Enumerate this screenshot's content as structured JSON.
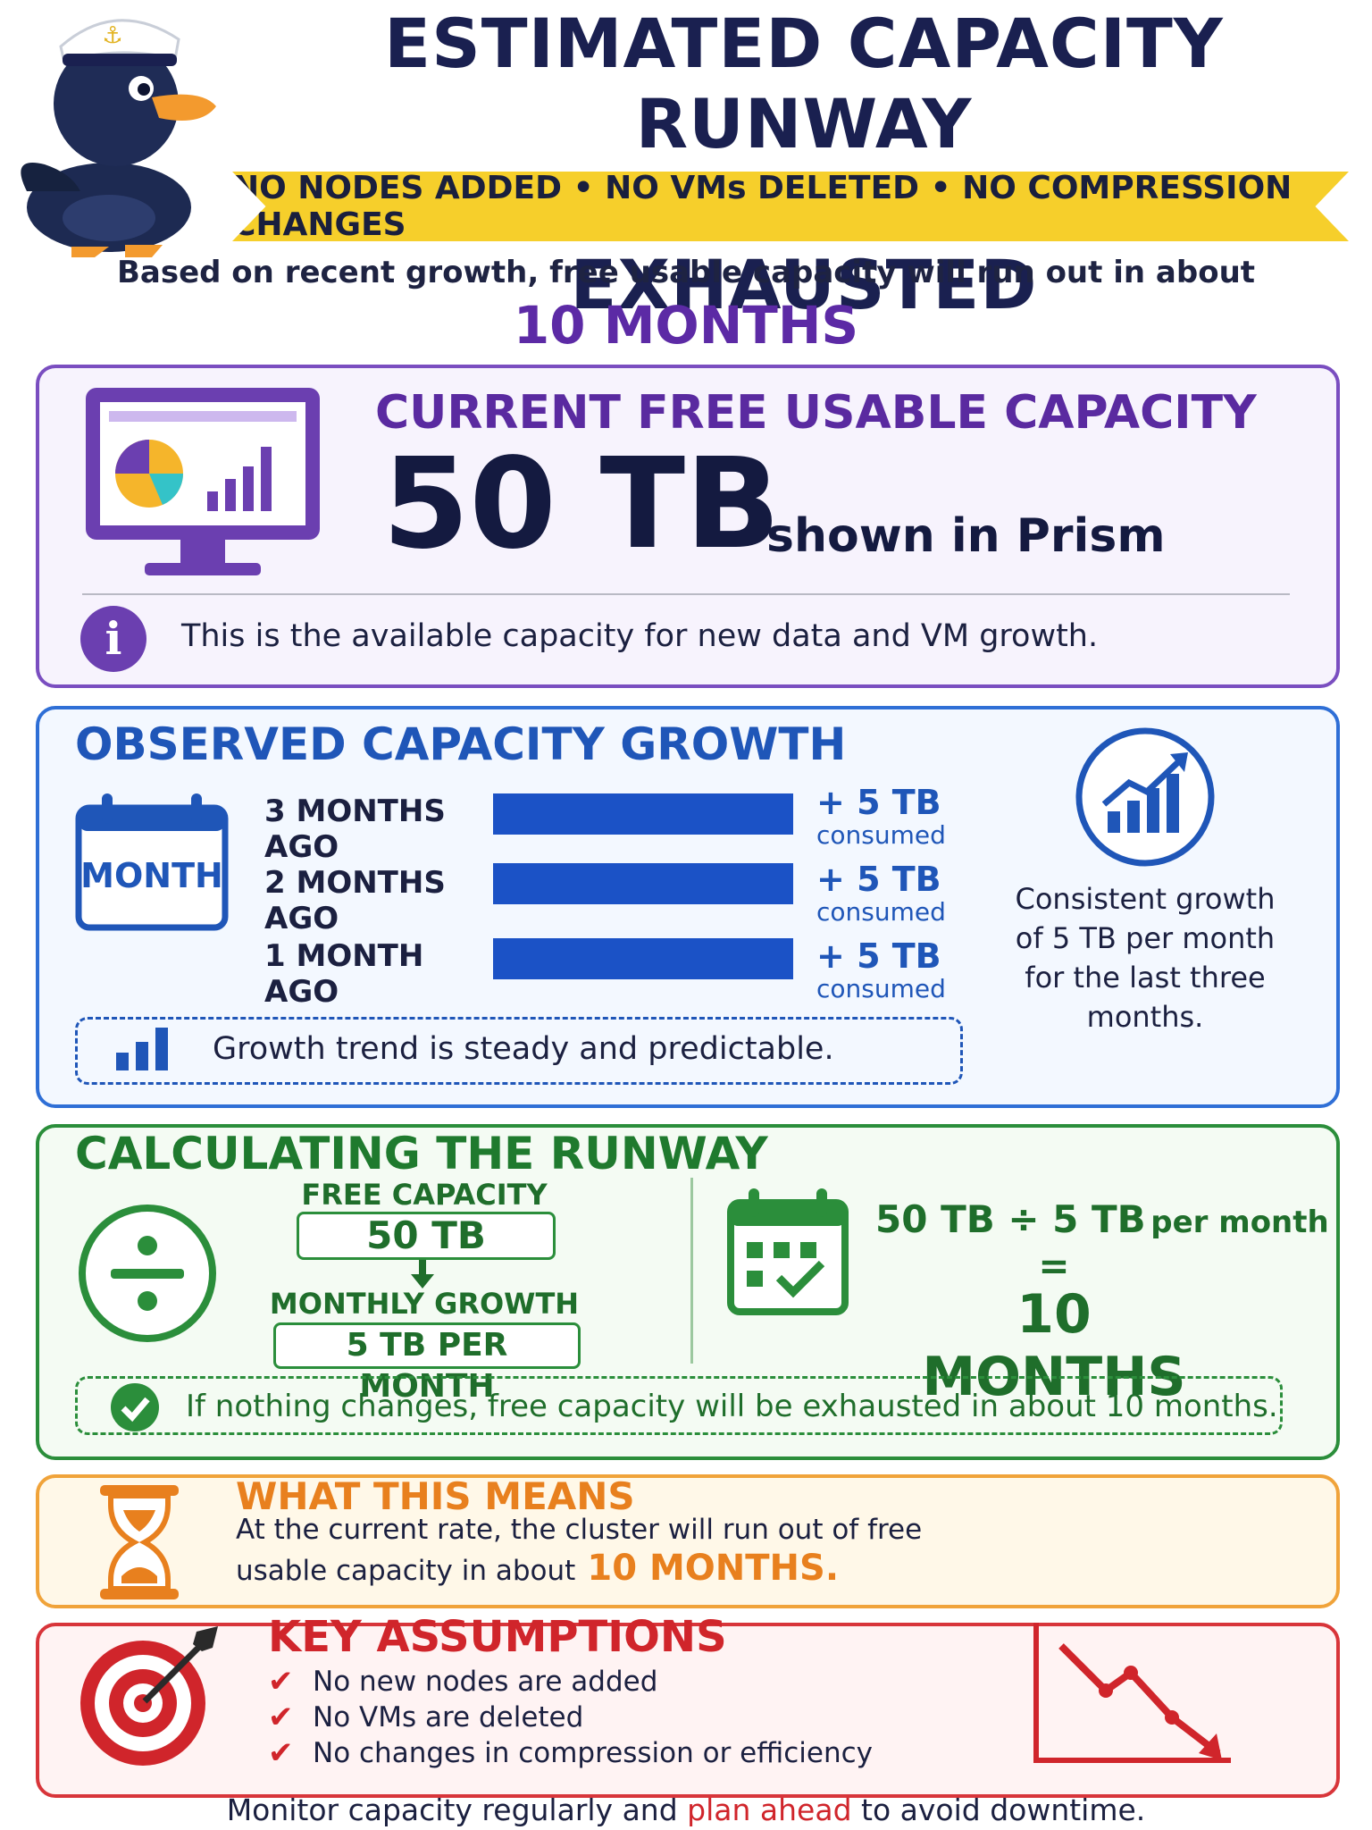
{
  "header": {
    "title_line1": "ESTIMATED CAPACITY RUNWAY",
    "title_line2": "BEFORE FREE SPACE IS EXHAUSTED",
    "banner": "NO NODES ADDED • NO VMs DELETED • NO COMPRESSION CHANGES",
    "intro": "Based on recent growth, free usable capacity will run out in about",
    "intro_value": "10 MONTHS"
  },
  "current": {
    "heading": "CURRENT FREE USABLE CAPACITY",
    "value": "50 TB",
    "suffix": "shown in Prism",
    "info": "This is the available capacity for new data and VM growth."
  },
  "growth": {
    "heading": "OBSERVED CAPACITY GROWTH",
    "calendar_label": "MONTH",
    "rows": [
      {
        "label": "3 MONTHS AGO",
        "amount": "+ 5 TB",
        "unit": "consumed",
        "value_tb": 5
      },
      {
        "label": "2 MONTHS AGO",
        "amount": "+ 5 TB",
        "unit": "consumed",
        "value_tb": 5
      },
      {
        "label": "1 MONTH AGO",
        "amount": "+ 5 TB",
        "unit": "consumed",
        "value_tb": 5
      }
    ],
    "trend_note": "Growth trend is steady and predictable.",
    "side_note_lines": [
      "Consistent growth",
      "of 5 TB per month",
      "for the last three",
      "months."
    ]
  },
  "runway": {
    "heading": "CALCULATING THE RUNWAY",
    "free_label": "FREE CAPACITY",
    "free_value": "50 TB",
    "growth_label": "MONTHLY GROWTH",
    "growth_value": "5 TB PER MONTH",
    "equation_lhs": "50 TB ÷ 5 TB",
    "equation_unit": "per month",
    "equals": "=",
    "result": "10 MONTHS",
    "conclusion": "If nothing changes, free capacity will be exhausted in about 10 months."
  },
  "meaning": {
    "heading": "WHAT THIS MEANS",
    "line1": "At the current rate, the cluster will run out of free",
    "line2": "usable capacity in about",
    "highlight": "10 MONTHS."
  },
  "assumptions": {
    "heading": "KEY ASSUMPTIONS",
    "items": [
      "No new nodes are added",
      "No VMs are deleted",
      "No changes in compression or efficiency"
    ]
  },
  "footer": {
    "before": "Monitor capacity regularly and",
    "highlight": "plan ahead",
    "after": "to avoid downtime."
  },
  "colors": {
    "navy": "#1a2050",
    "purple": "#5c2aa5",
    "blue": "#1b52c6",
    "green": "#2b8e3b",
    "orange": "#e8801e",
    "red": "#d0252b",
    "yellow": "#f6cf2b"
  },
  "icons": {
    "mascot": "sailor-duck-icon",
    "current": "monitor-chart-icon",
    "info": "info-icon",
    "calendar": "calendar-icon",
    "trend": "trending-up-icon",
    "bars": "bar-chart-icon",
    "divide": "divide-icon",
    "schedule": "calendar-check-icon",
    "check": "check-circle-icon",
    "hourglass": "hourglass-icon",
    "target": "target-icon",
    "decline": "declining-chart-icon"
  }
}
